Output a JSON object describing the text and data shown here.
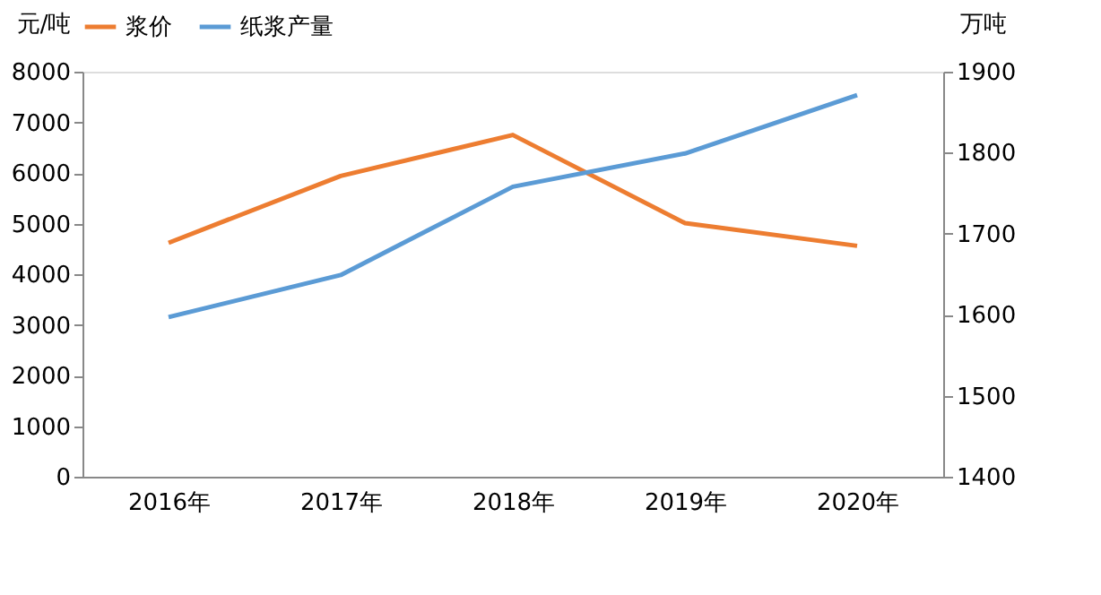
{
  "chart_data": {
    "type": "line",
    "categories": [
      "2016年",
      "2017年",
      "2018年",
      "2019年",
      "2020年"
    ],
    "ylabel": "元/吨",
    "y2label": "万吨",
    "series": [
      {
        "name": "浆价",
        "color": "#ed7d31",
        "values": [
          4620,
          5940,
          6750,
          5010,
          4560
        ]
      },
      {
        "name": "纸浆产量",
        "color": "#5b9bd5",
        "axis": "y2",
        "values": [
          1597,
          1649,
          1758,
          1799,
          1871
        ]
      }
    ],
    "ylim": [
      0,
      8000
    ],
    "yticks": [
      0,
      1000,
      2000,
      3000,
      4000,
      5000,
      6000,
      7000,
      8000
    ],
    "y2lim": [
      1400,
      1900
    ],
    "y2ticks": [
      1400,
      1500,
      1600,
      1700,
      1800,
      1900
    ],
    "grid": false,
    "legend": "top",
    "marker": "none",
    "line_style": "solid"
  }
}
